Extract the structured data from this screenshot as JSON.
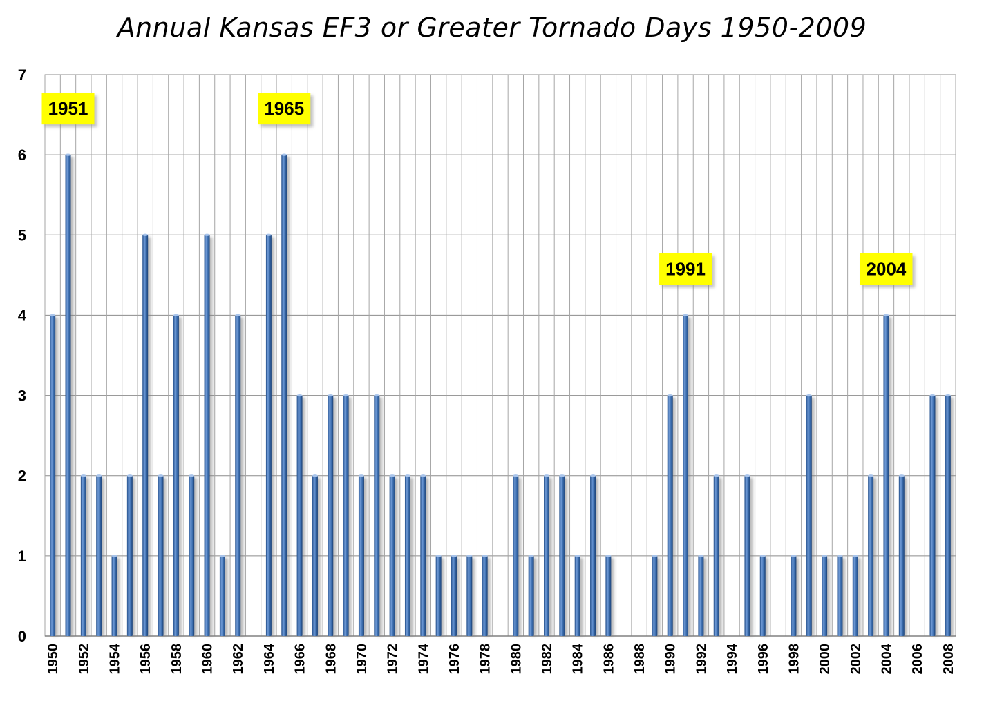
{
  "chart_data": {
    "type": "bar",
    "title": "Annual Kansas EF3 or Greater Tornado Days 1950-2009",
    "xlabel": "",
    "ylabel": "",
    "ylim": [
      0,
      7
    ],
    "yticks": [
      "0",
      "1",
      "2",
      "3",
      "4",
      "5",
      "6",
      "7"
    ],
    "grid": true,
    "legend": "none",
    "bar_color": "#3d6fb0",
    "annotation_color": "#ffff00",
    "categories": [
      "1950",
      "1951",
      "1952",
      "1953",
      "1954",
      "1955",
      "1956",
      "1957",
      "1958",
      "1959",
      "1960",
      "1961",
      "1962",
      "1963",
      "1964",
      "1965",
      "1966",
      "1967",
      "1968",
      "1969",
      "1970",
      "1971",
      "1972",
      "1973",
      "1974",
      "1975",
      "1976",
      "1977",
      "1978",
      "1979",
      "1980",
      "1981",
      "1982",
      "1983",
      "1984",
      "1985",
      "1986",
      "1987",
      "1988",
      "1989",
      "1990",
      "1991",
      "1992",
      "1993",
      "1994",
      "1995",
      "1996",
      "1997",
      "1998",
      "1999",
      "2000",
      "2001",
      "2002",
      "2003",
      "2004",
      "2005",
      "2006",
      "2007",
      "2008"
    ],
    "x_tick_labels": [
      "1950",
      "1952",
      "1954",
      "1956",
      "1958",
      "1960",
      "1962",
      "1964",
      "1966",
      "1968",
      "1970",
      "1972",
      "1974",
      "1976",
      "1978",
      "1980",
      "1982",
      "1984",
      "1986",
      "1988",
      "1990",
      "1992",
      "1994",
      "1996",
      "1998",
      "2000",
      "2002",
      "2004",
      "2006",
      "2008"
    ],
    "values": [
      4,
      6,
      2,
      2,
      1,
      2,
      5,
      2,
      4,
      2,
      5,
      1,
      4,
      0,
      5,
      6,
      3,
      2,
      3,
      3,
      2,
      3,
      2,
      2,
      2,
      1,
      1,
      1,
      1,
      0,
      2,
      1,
      2,
      2,
      1,
      2,
      1,
      0,
      0,
      1,
      3,
      4,
      1,
      2,
      0,
      2,
      1,
      0,
      1,
      3,
      1,
      1,
      1,
      2,
      4,
      2,
      0,
      3,
      3
    ],
    "annotations": [
      {
        "label": "1951",
        "year": "1951"
      },
      {
        "label": "1965",
        "year": "1965"
      },
      {
        "label": "1991",
        "year": "1991"
      },
      {
        "label": "2004",
        "year": "2004"
      }
    ]
  }
}
